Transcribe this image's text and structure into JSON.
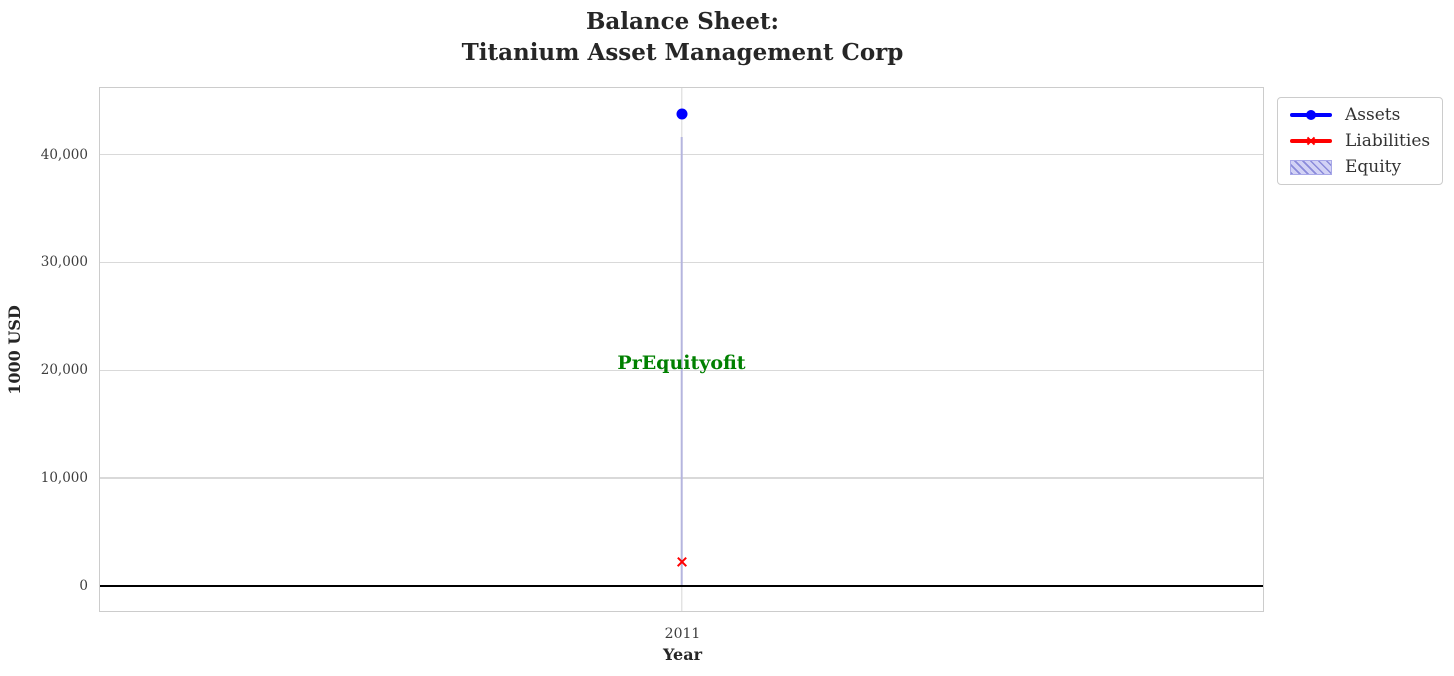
{
  "figure": {
    "title_line1": "Balance Sheet:",
    "title_line2": "Titanium Asset Management Corp"
  },
  "chart_data": {
    "type": "line",
    "title": "Balance Sheet:\nTitanium Asset Management Corp",
    "xlabel": "Year",
    "ylabel": "1000 USD",
    "x": [
      2011
    ],
    "xticks": [
      "2011"
    ],
    "yticks": [
      0,
      10000,
      20000,
      30000,
      40000
    ],
    "ytick_labels": [
      "0",
      "10,000",
      "20,000",
      "30,000",
      "40,000"
    ],
    "ylim": [
      -2330,
      46170
    ],
    "grid": true,
    "zero_line_at": 0,
    "legend_position": "upper right, outside plot",
    "series": [
      {
        "name": "Assets",
        "type": "line",
        "marker": "circle",
        "color": "#0000ff",
        "values": [
          43800
        ]
      },
      {
        "name": "Liabilities",
        "type": "line",
        "marker": "x",
        "color": "#ff0000",
        "values": [
          2200
        ]
      },
      {
        "name": "Equity",
        "type": "bar",
        "style": "hatched",
        "fill_color": "#d2d2f5",
        "hatch_color": "#8a8ada",
        "values": [
          41600
        ]
      }
    ],
    "annotation": {
      "text": "PrEquityofit",
      "x": 2011,
      "y": 20700,
      "color": "#008000"
    }
  },
  "colors": {
    "assets": "#0000ff",
    "liabilities": "#ff0000",
    "equity_fill": "#d2d2f5",
    "equity_hatch": "#8a8ada",
    "annotation_green": "#008000",
    "grid": "#d9d9d9",
    "zero_line": "#000000",
    "title_text": "#262626"
  }
}
